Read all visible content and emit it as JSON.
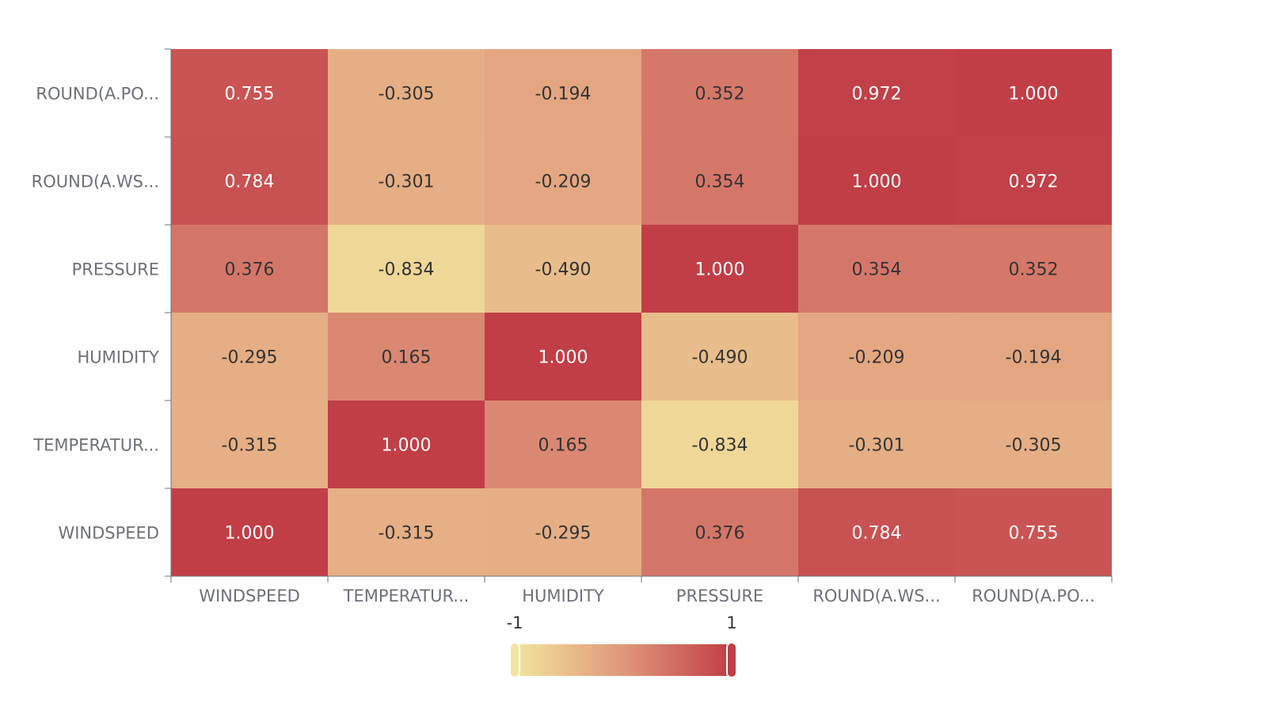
{
  "chart_data": {
    "type": "heatmap",
    "x_categories": [
      "WINDSPEED",
      "TEMPERATUR...",
      "HUMIDITY",
      "PRESSURE",
      "ROUND(A.WS...",
      "ROUND(A.PO..."
    ],
    "y_categories": [
      "WINDSPEED",
      "TEMPERATUR...",
      "HUMIDITY",
      "PRESSURE",
      "ROUND(A.WS...",
      "ROUND(A.PO..."
    ],
    "values": [
      [
        1.0,
        -0.315,
        -0.295,
        0.376,
        0.784,
        0.755
      ],
      [
        -0.315,
        1.0,
        0.165,
        -0.834,
        -0.301,
        -0.305
      ],
      [
        -0.295,
        0.165,
        1.0,
        -0.49,
        -0.209,
        -0.194
      ],
      [
        0.376,
        -0.834,
        -0.49,
        1.0,
        0.354,
        0.352
      ],
      [
        0.784,
        -0.301,
        -0.209,
        0.354,
        1.0,
        0.972
      ],
      [
        0.755,
        -0.305,
        -0.194,
        0.352,
        0.972,
        1.0
      ]
    ],
    "value_range": [
      -1,
      1
    ],
    "visual_map": {
      "min_label": "-1",
      "max_label": "1"
    },
    "colors": {
      "low": "#f2e49d",
      "mid": "#e0977a",
      "high": "#c13e47"
    },
    "legend_placement": "bottom-center"
  }
}
